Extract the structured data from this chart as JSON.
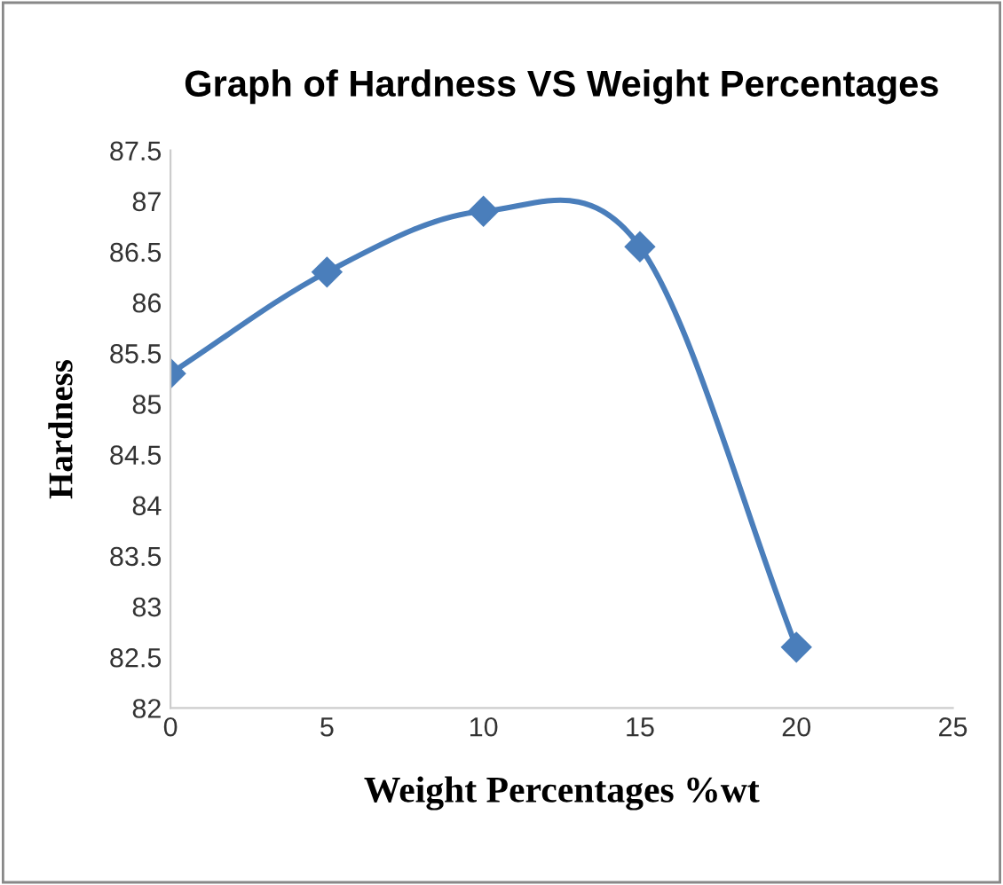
{
  "chart_data": {
    "type": "line",
    "title": "Graph of Hardness VS Weight Percentages",
    "xlabel": "Weight Percentages %wt",
    "ylabel": "Hardness",
    "x": [
      0,
      5,
      10,
      15,
      20
    ],
    "series": [
      {
        "color": "#4a7ebb",
        "values": [
          85.3,
          86.3,
          86.9,
          86.55,
          82.6
        ]
      }
    ],
    "xlim": [
      0,
      25
    ],
    "xticks": [
      0,
      5,
      10,
      15,
      20,
      25
    ],
    "ylim": [
      82,
      87.5
    ],
    "yticks": [
      82,
      82.5,
      83,
      83.5,
      84,
      84.5,
      85,
      85.5,
      86,
      86.5,
      87,
      87.5
    ],
    "grid": false,
    "legend": false,
    "marker": "diamond",
    "line_style": "solid"
  }
}
